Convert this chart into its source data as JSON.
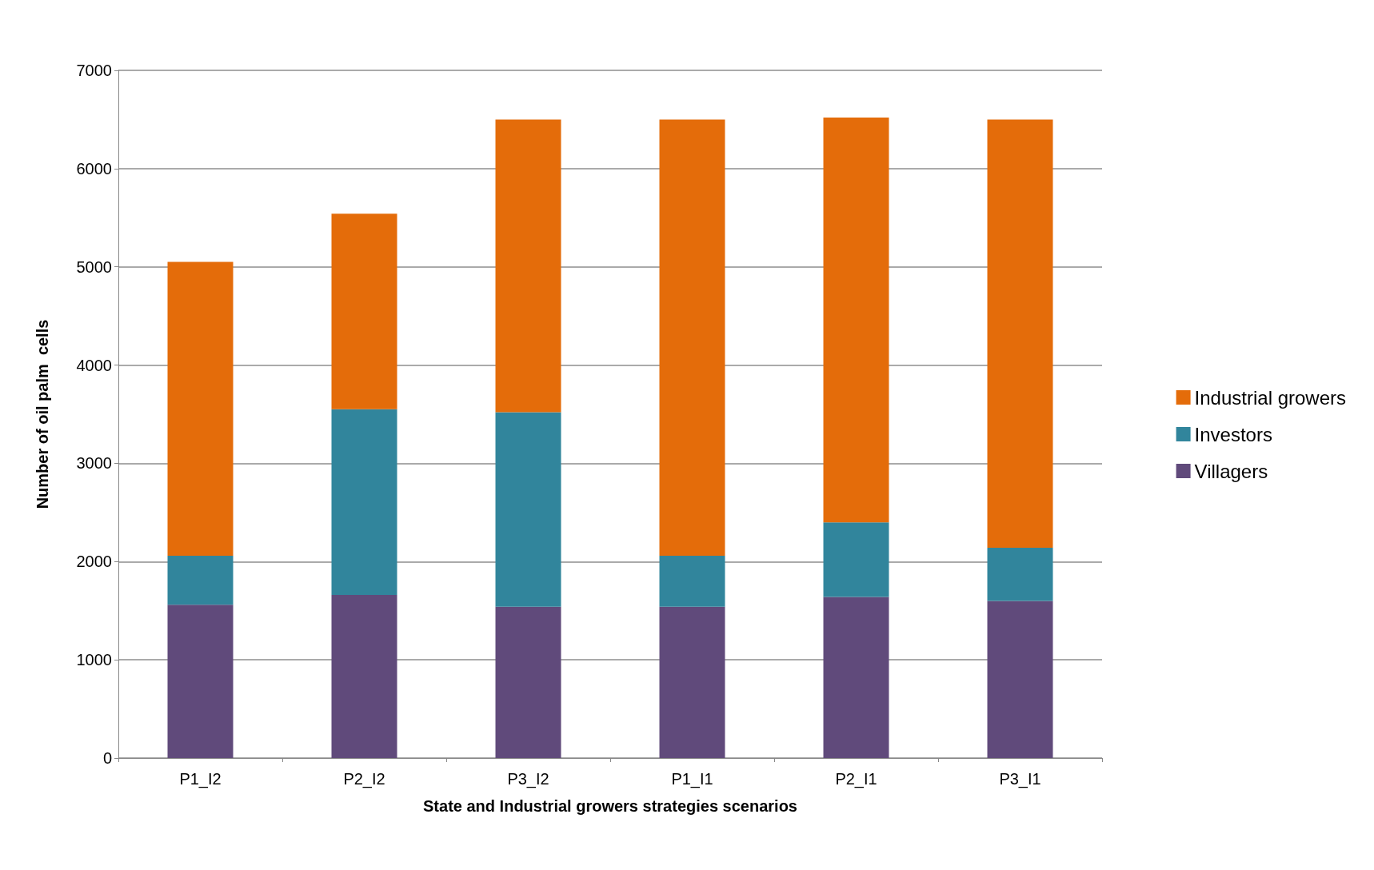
{
  "chart_data": {
    "type": "bar",
    "stacked": true,
    "xlabel": "State and Industrial growers strategies scenarios",
    "ylabel": "Number of oil palm  cells",
    "categories": [
      "P1_I2",
      "P2_I2",
      "P3_I2",
      "P1_I1",
      "P2_I1",
      "P3_I1"
    ],
    "series": [
      {
        "name": "Villagers",
        "color": "#604a7b",
        "values": [
          1560,
          1660,
          1540,
          1540,
          1640,
          1600
        ]
      },
      {
        "name": "Investors",
        "color": "#31859c",
        "values": [
          500,
          1890,
          1980,
          520,
          760,
          540
        ]
      },
      {
        "name": "Industrial growers",
        "color": "#e46c0a",
        "values": [
          2990,
          1990,
          2980,
          4440,
          4120,
          4360
        ]
      }
    ],
    "ylim": [
      0,
      7000
    ],
    "yticks": [
      0,
      1000,
      2000,
      3000,
      4000,
      5000,
      6000,
      7000
    ],
    "grid": "y",
    "legend": "right"
  }
}
